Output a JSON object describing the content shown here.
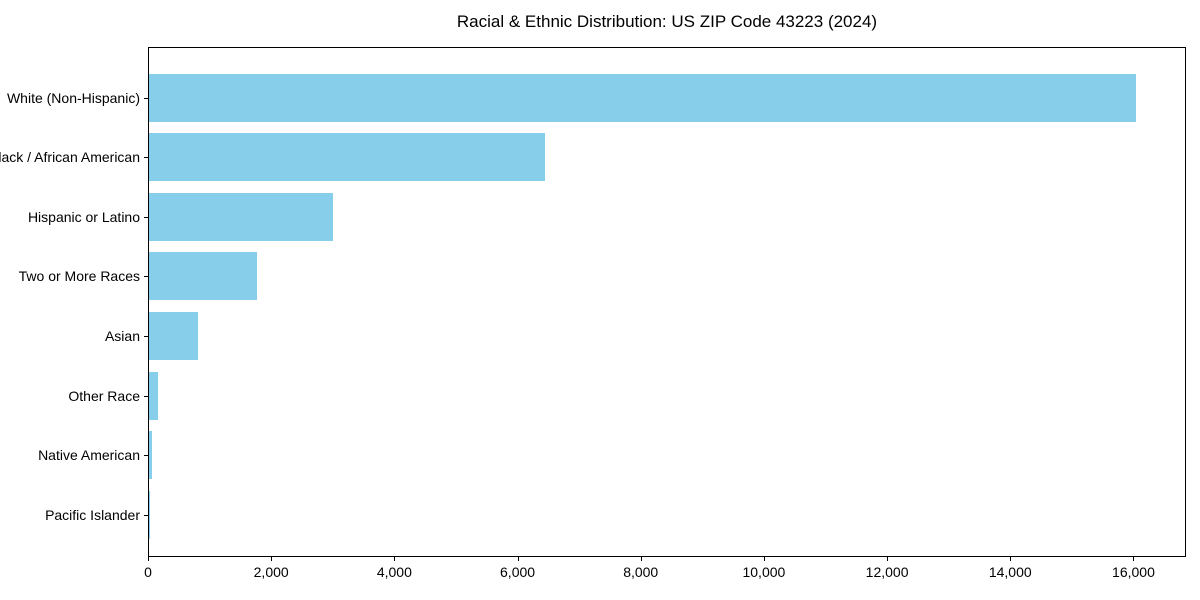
{
  "chart_data": {
    "type": "bar",
    "orientation": "horizontal",
    "title": "Racial & Ethnic Distribution: US ZIP Code 43223 (2024)",
    "categories": [
      "White (Non-Hispanic)",
      "Black / African American",
      "Hispanic or Latino",
      "Two or More Races",
      "Asian",
      "Other Race",
      "Native American",
      "Pacific Islander"
    ],
    "values": [
      16050,
      6450,
      3000,
      1750,
      800,
      150,
      55,
      10
    ],
    "bar_color": "#87CEEB",
    "xlabel": "",
    "ylabel": "",
    "xlim": [
      0,
      16853
    ],
    "x_ticks": [
      0,
      2000,
      4000,
      6000,
      8000,
      10000,
      12000,
      14000,
      16000
    ],
    "x_tick_labels": [
      "0",
      "2,000",
      "4,000",
      "6,000",
      "8,000",
      "10,000",
      "12,000",
      "14,000",
      "16,000"
    ],
    "grid": false,
    "legend": null,
    "frame_color": "#000000",
    "text_color": "#000000",
    "background_color": "#ffffff"
  }
}
